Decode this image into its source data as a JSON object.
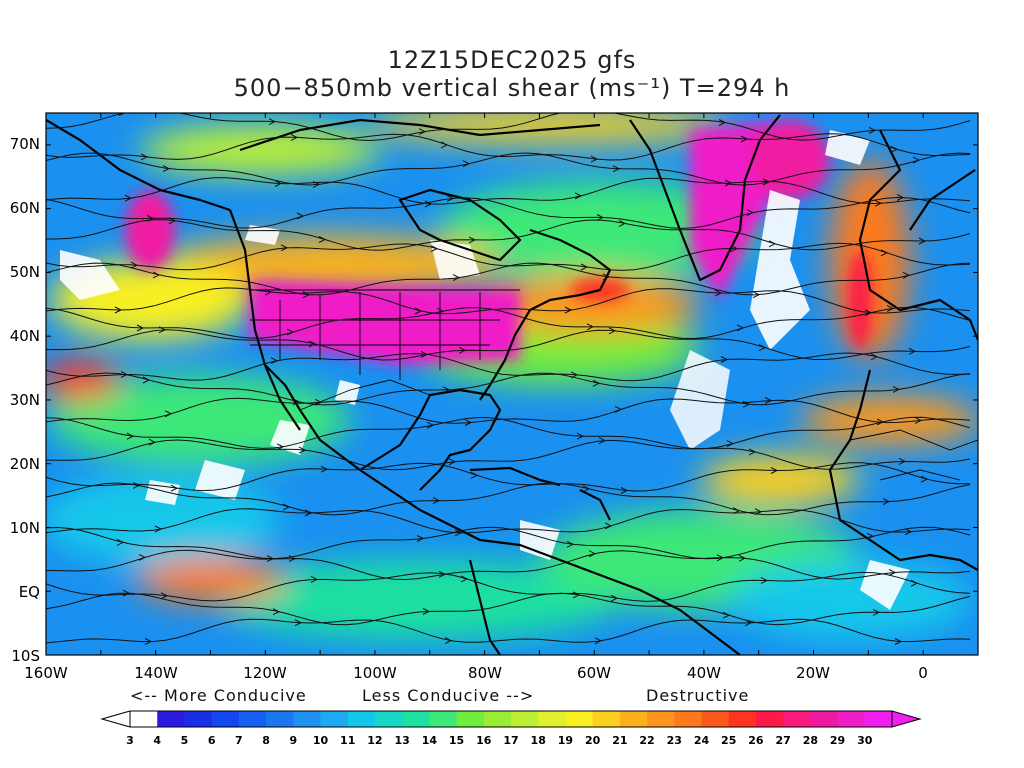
{
  "title": {
    "line1": "12Z15DEC2025 gfs",
    "line2": "500−850mb vertical shear (ms⁻¹) T=294 h"
  },
  "axes": {
    "lat_labels": [
      "70N",
      "60N",
      "50N",
      "40N",
      "30N",
      "20N",
      "10N",
      "EQ",
      "10S"
    ],
    "lon_labels": [
      "160W",
      "140W",
      "120W",
      "100W",
      "80W",
      "60W",
      "40W",
      "20W",
      "0"
    ],
    "lat_range": [
      -10,
      75
    ],
    "lon_range": [
      -160,
      10
    ]
  },
  "legend": {
    "more_conducive": "<-- More Conducive",
    "less_conducive": "Less Conducive -->",
    "destructive": "Destructive"
  },
  "colorbar": {
    "levels": [
      "3",
      "4",
      "5",
      "6",
      "7",
      "8",
      "9",
      "10",
      "11",
      "12",
      "13",
      "14",
      "15",
      "16",
      "17",
      "18",
      "19",
      "20",
      "21",
      "22",
      "23",
      "24",
      "25",
      "26",
      "27",
      "28",
      "29",
      "30"
    ],
    "colors": [
      "#ffffff",
      "#2b1be0",
      "#1a2ee8",
      "#1446f0",
      "#1560f0",
      "#1a78ee",
      "#1e90f0",
      "#1eaaf2",
      "#12c8ea",
      "#16d8c6",
      "#1ee0a0",
      "#3ee878",
      "#70ee3e",
      "#98ee34",
      "#bcf034",
      "#e0f02c",
      "#f8f020",
      "#fcd01e",
      "#fcb01c",
      "#fc961c",
      "#fc7a1c",
      "#fc5a1c",
      "#fc3420",
      "#fc1a4a",
      "#f81a7c",
      "#f01aa2",
      "#f01ec8",
      "#f01ef0"
    ]
  },
  "colors": {
    "map_background": "#1a90f0",
    "shear_high": "#f01aa2",
    "shear_mid": "#fcb01c",
    "shear_low_green": "#70ee3e",
    "shear_calm": "#ffffff"
  }
}
